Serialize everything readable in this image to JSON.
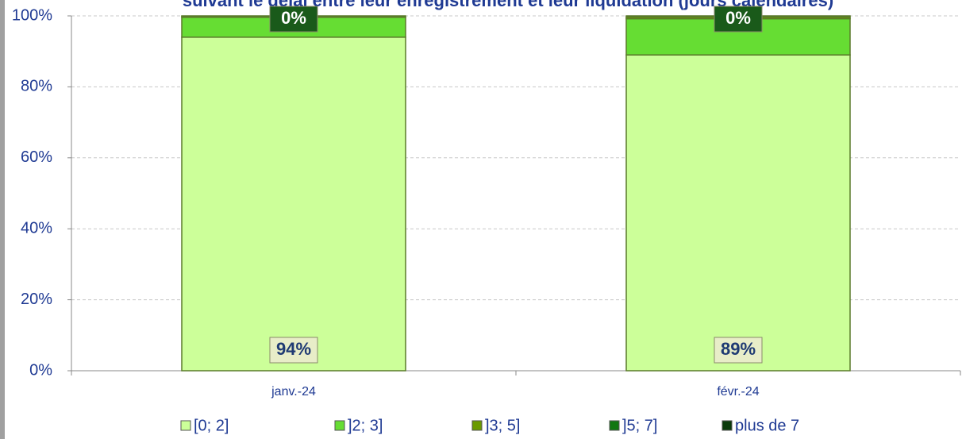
{
  "chart_data": {
    "type": "stacked_bar",
    "title": "suivant le délai entre leur enregistrement et leur liquidation (jours calendaires)",
    "categories": [
      "janv.-24",
      "févr.-24"
    ],
    "series": [
      {
        "name": "[0; 2]",
        "color": "#ccff99",
        "values": [
          94,
          89
        ],
        "value_labels": [
          "94%",
          "89%"
        ]
      },
      {
        "name": "]2; 3]",
        "color": "#66dd33",
        "values": [
          5.6,
          10.2
        ]
      },
      {
        "name": "]3; 5]",
        "color": "#6a9a00",
        "values": [
          0.3,
          0.5
        ]
      },
      {
        "name": "]5; 7]",
        "color": "#117711",
        "values": [
          0.1,
          0.3
        ]
      },
      {
        "name": "plus de 7",
        "color": "#0a3a0a",
        "values": [
          0,
          0
        ],
        "value_labels": [
          "0%",
          "0%"
        ]
      }
    ],
    "ylim": [
      0,
      100
    ],
    "yticks": [
      {
        "value": 0,
        "label": "0%"
      },
      {
        "value": 20,
        "label": "20%"
      },
      {
        "value": 40,
        "label": "40%"
      },
      {
        "value": 60,
        "label": "60%"
      },
      {
        "value": 80,
        "label": "80%"
      },
      {
        "value": 100,
        "label": "100%"
      }
    ],
    "grid": true
  }
}
